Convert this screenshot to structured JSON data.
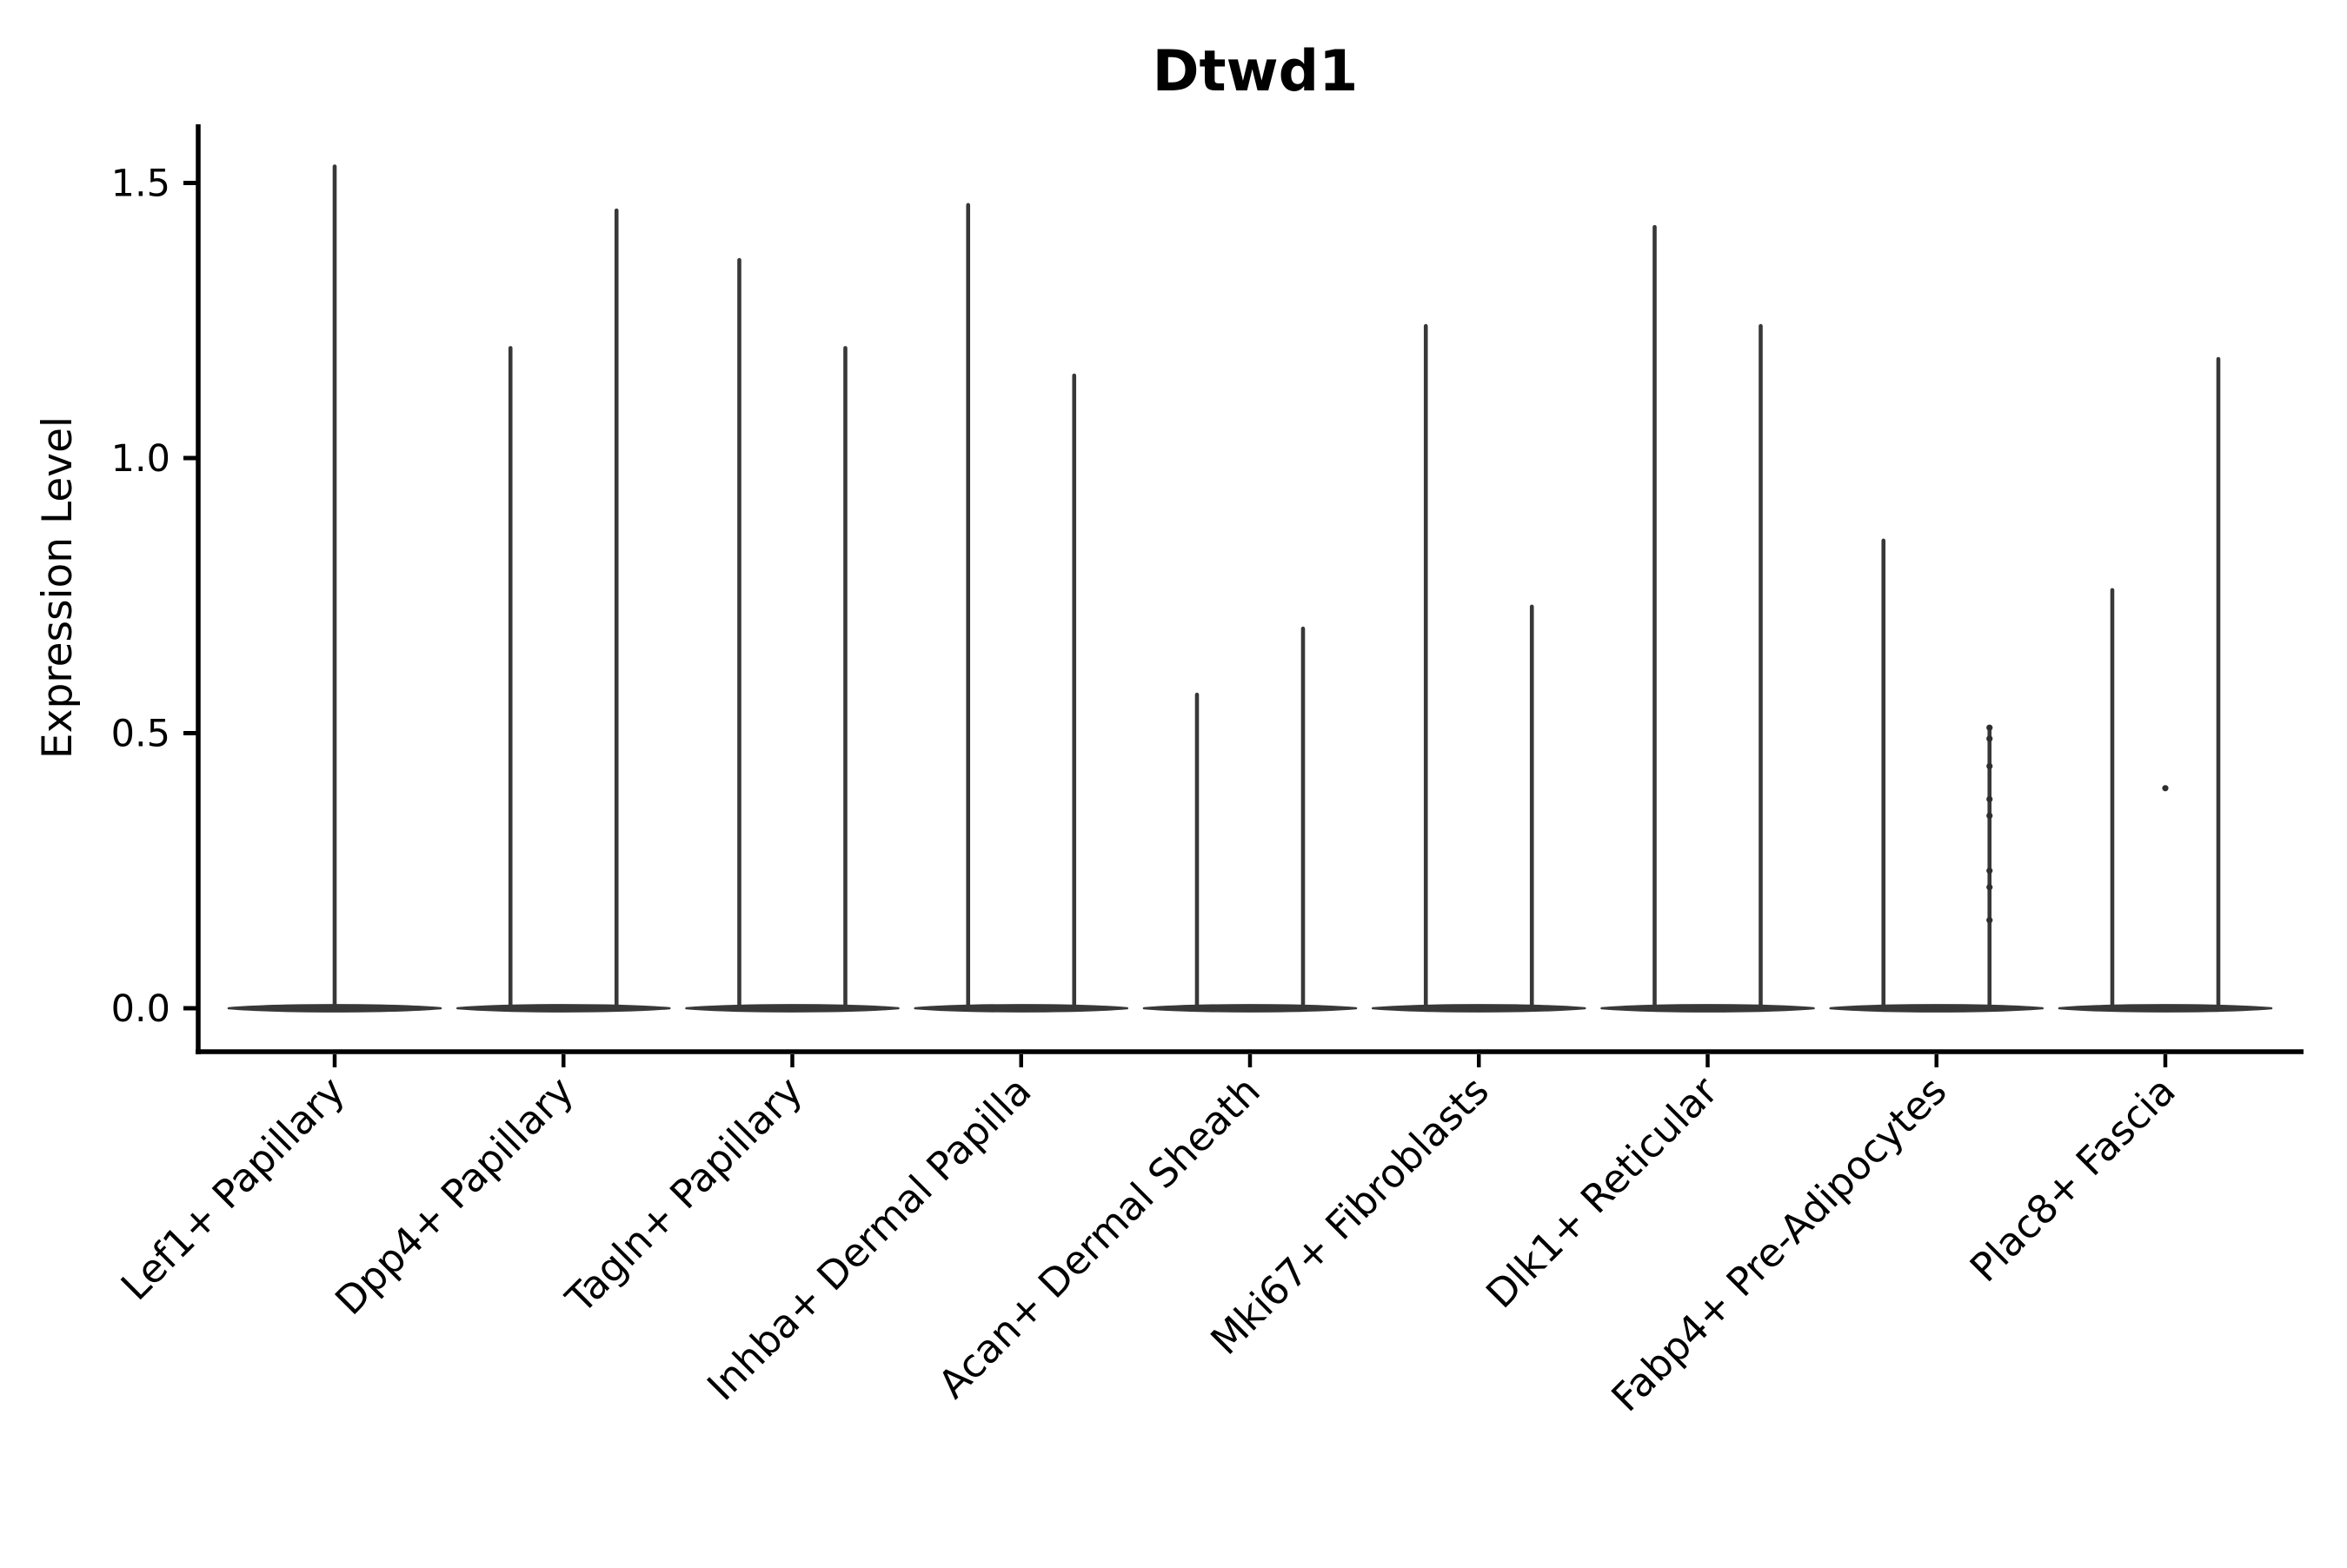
{
  "title": "Dtwd1",
  "chart_data": {
    "type": "violin",
    "title": "Dtwd1",
    "xlabel": "",
    "ylabel": "Expression Level",
    "ylim": [
      -0.08,
      1.61
    ],
    "grid": false,
    "legend": "none",
    "yticks": [
      "0.0",
      "0.5",
      "1.0",
      "1.5"
    ],
    "ytick_values": [
      0.0,
      0.5,
      1.0,
      1.5
    ],
    "categories": [
      "Lef1+ Papillary",
      "Dpp4+ Papillary",
      "Tagln+ Papillary",
      "Inhba+ Dermal Papilla",
      "Acan+ Dermal Sheath",
      "Mki67+ Fibroblasts",
      "Dlk1+ Reticular",
      "Fabp4+ Pre-Adipocytes",
      "Plac8+ Fascia"
    ],
    "violin_description": "Each category shows flattened violin(s) at expression 0 with thin spikes reaching the maximum expression value; first category has one centered violin, all others have a left and right violin pair.",
    "series": [
      {
        "category": "Lef1+ Papillary",
        "spike_maxima": [
          1.53
        ]
      },
      {
        "category": "Dpp4+ Papillary",
        "spike_maxima": [
          1.2,
          1.45
        ]
      },
      {
        "category": "Tagln+ Papillary",
        "spike_maxima": [
          1.36,
          1.2
        ]
      },
      {
        "category": "Inhba+ Dermal Papilla",
        "spike_maxima": [
          1.46,
          1.15
        ]
      },
      {
        "category": "Acan+ Dermal Sheath",
        "spike_maxima": [
          0.57,
          0.69
        ]
      },
      {
        "category": "Mki67+ Fibroblasts",
        "spike_maxima": [
          1.24,
          0.73
        ]
      },
      {
        "category": "Dlk1+ Reticular",
        "spike_maxima": [
          1.42,
          1.24
        ]
      },
      {
        "category": "Fabp4+ Pre-Adipocytes",
        "spike_maxima": [
          0.85,
          0.51
        ]
      },
      {
        "category": "Plac8+ Fascia",
        "spike_maxima": [
          0.76,
          1.18
        ]
      }
    ],
    "scatter_points": [
      {
        "category_index": 7,
        "spike_index": 1,
        "values": [
          0.51,
          0.49,
          0.44,
          0.38,
          0.35,
          0.25,
          0.22,
          0.16
        ]
      },
      {
        "category_index": 8,
        "spike_index": -1,
        "values": [
          0.4
        ]
      }
    ],
    "colors": {
      "violin": "#383838",
      "point": "#2e2e2e",
      "axis": "#000000",
      "text": "#000000",
      "background": "#ffffff"
    }
  }
}
